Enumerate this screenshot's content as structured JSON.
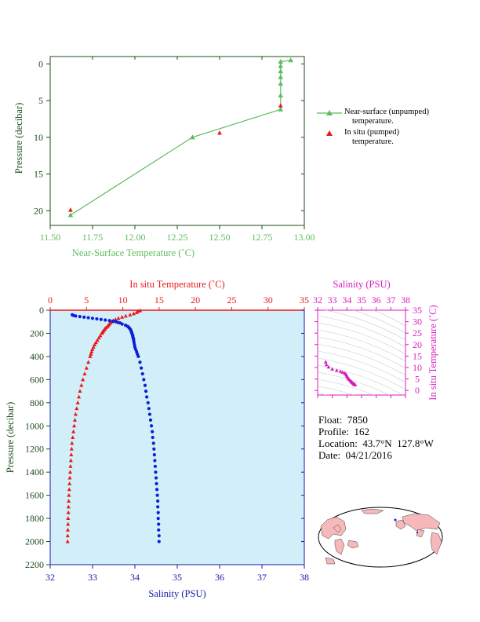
{
  "colors": {
    "green": "#5cbd5c",
    "red": "#e8191b",
    "blue": "#0b1fd6",
    "magenta": "#d81bc0",
    "navy": "#1a1aa8",
    "plot_bg": "#d2eef8",
    "axis_dark": "#1b4d1b"
  },
  "legend": {
    "unpumped_label": "Near-surface (unpumped)",
    "unpumped_sub": "temperature.",
    "pumped_label": "In situ (pumped)",
    "pumped_sub": "temperature."
  },
  "info": {
    "float": "Float:  7850",
    "profile": "Profile:  162",
    "location": "Location:  43.7°N  127.8°W",
    "date": "Date:  04/21/2016"
  },
  "footer_note": "",
  "chart_data": [
    {
      "type": "line",
      "xlabel": "Near-Surface Temperature (˚C)",
      "ylabel": "Pressure (decibar)",
      "xlim": [
        11.5,
        13.0
      ],
      "ylim": [
        22,
        -1
      ],
      "x_ticks": [
        "11.50",
        "11.75",
        "12.00",
        "12.25",
        "12.50",
        "12.75",
        "13.00"
      ],
      "y_ticks": [
        "0",
        "5",
        "10",
        "15",
        "20"
      ],
      "series": [
        {
          "name": "Near-surface (unpumped) temperature.",
          "marker": "triangle",
          "color": "#5cbd5c",
          "points": [
            [
              12.92,
              -0.5
            ],
            [
              12.86,
              -0.3
            ],
            [
              12.86,
              0.3
            ],
            [
              12.86,
              1.0
            ],
            [
              12.86,
              1.8
            ],
            [
              12.86,
              2.7
            ],
            [
              12.86,
              4.3
            ],
            [
              12.86,
              6.2
            ],
            [
              12.34,
              10.0
            ],
            [
              11.62,
              20.6
            ]
          ]
        },
        {
          "name": "In situ (pumped) temperature.",
          "marker": "triangle",
          "color": "#e8191b",
          "points": [
            [
              12.86,
              5.7
            ],
            [
              12.5,
              9.4
            ],
            [
              11.62,
              19.9
            ]
          ]
        }
      ]
    },
    {
      "type": "scatter",
      "title": "In situ Temperature (˚C)",
      "xlabel": "Salinity (PSU)",
      "ylabel": "Pressure (decibar)",
      "top_axis": {
        "range": [
          0,
          35
        ],
        "ticks": [
          "0",
          "5",
          "10",
          "15",
          "20",
          "25",
          "30",
          "35"
        ]
      },
      "bottom_axis": {
        "range": [
          32,
          38
        ],
        "ticks": [
          "32",
          "33",
          "34",
          "35",
          "36",
          "37",
          "38"
        ]
      },
      "ylim": [
        2200,
        0
      ],
      "y_ticks": [
        "0",
        "200",
        "400",
        "600",
        "800",
        "1000",
        "1200",
        "1400",
        "1600",
        "1800",
        "2000",
        "2200"
      ],
      "temperature": {
        "pressure": [
          4,
          10,
          20,
          30,
          40,
          50,
          60,
          70,
          80,
          90,
          100,
          110,
          120,
          130,
          140,
          150,
          160,
          170,
          180,
          190,
          200,
          220,
          240,
          260,
          280,
          300,
          320,
          340,
          360,
          380,
          400,
          450,
          500,
          550,
          600,
          650,
          700,
          750,
          800,
          850,
          900,
          950,
          1000,
          1050,
          1100,
          1150,
          1200,
          1250,
          1300,
          1350,
          1400,
          1450,
          1500,
          1550,
          1600,
          1650,
          1700,
          1750,
          1800,
          1850,
          1900,
          1950,
          2000
        ],
        "values": [
          12.4,
          12.1,
          11.9,
          11.5,
          11.0,
          10.4,
          9.9,
          9.4,
          9.0,
          8.7,
          8.5,
          8.3,
          8.15,
          8.0,
          7.9,
          7.7,
          7.55,
          7.45,
          7.3,
          7.2,
          7.1,
          6.9,
          6.7,
          6.5,
          6.3,
          6.1,
          5.95,
          5.8,
          5.7,
          5.6,
          5.5,
          5.25,
          5.0,
          4.75,
          4.5,
          4.3,
          4.1,
          3.95,
          3.8,
          3.65,
          3.5,
          3.4,
          3.3,
          3.2,
          3.1,
          3.0,
          2.95,
          2.9,
          2.85,
          2.8,
          2.75,
          2.7,
          2.66,
          2.62,
          2.58,
          2.55,
          2.52,
          2.5,
          2.47,
          2.45,
          2.43,
          2.41,
          2.4
        ]
      },
      "salinity": {
        "pressure": [
          40,
          45,
          50,
          55,
          60,
          65,
          70,
          75,
          80,
          85,
          90,
          95,
          100,
          105,
          110,
          120,
          130,
          140,
          150,
          160,
          170,
          180,
          190,
          200,
          210,
          220,
          230,
          240,
          250,
          260,
          280,
          300,
          320,
          340,
          360,
          380,
          400,
          450,
          500,
          550,
          600,
          650,
          700,
          750,
          800,
          850,
          900,
          950,
          1000,
          1050,
          1100,
          1150,
          1200,
          1250,
          1300,
          1350,
          1400,
          1450,
          1500,
          1550,
          1600,
          1650,
          1700,
          1750,
          1800,
          1850,
          1900,
          1950,
          2000
        ],
        "values": [
          32.52,
          32.55,
          32.6,
          32.7,
          32.8,
          32.9,
          33.0,
          33.1,
          33.2,
          33.3,
          33.4,
          33.48,
          33.55,
          33.6,
          33.65,
          33.7,
          33.78,
          33.83,
          33.86,
          33.88,
          33.9,
          33.91,
          33.92,
          33.93,
          33.94,
          33.95,
          33.95,
          33.96,
          33.97,
          33.97,
          33.98,
          33.99,
          34.0,
          34.02,
          34.04,
          34.06,
          34.08,
          34.12,
          34.15,
          34.18,
          34.21,
          34.24,
          34.26,
          34.28,
          34.31,
          34.33,
          34.35,
          34.37,
          34.39,
          34.41,
          34.42,
          34.44,
          34.45,
          34.46,
          34.47,
          34.48,
          34.49,
          34.5,
          34.51,
          34.52,
          34.53,
          34.54,
          34.54,
          34.55,
          34.55,
          34.56,
          34.56,
          34.57,
          34.57
        ]
      }
    },
    {
      "type": "scatter",
      "title": "Salinity (PSU)",
      "ylabel": "In situ Temperature (˚C)",
      "xlim": [
        32,
        38
      ],
      "ylim": [
        -2,
        35
      ],
      "x_ticks": [
        "32",
        "33",
        "34",
        "35",
        "36",
        "37",
        "38"
      ],
      "y_ticks": [
        "0",
        "5",
        "10",
        "15",
        "20",
        "25",
        "30",
        "35"
      ],
      "points": [
        [
          32.55,
          12.4
        ],
        [
          32.6,
          11.2
        ],
        [
          32.75,
          10.2
        ],
        [
          33.0,
          9.3
        ],
        [
          33.3,
          8.7
        ],
        [
          33.55,
          8.3
        ],
        [
          33.7,
          7.9
        ],
        [
          33.85,
          7.5
        ],
        [
          33.93,
          7.1
        ],
        [
          33.97,
          6.7
        ],
        [
          34.0,
          6.2
        ],
        [
          34.05,
          5.7
        ],
        [
          34.1,
          5.2
        ],
        [
          34.15,
          4.8
        ],
        [
          34.22,
          4.3
        ],
        [
          34.28,
          3.9
        ],
        [
          34.33,
          3.6
        ],
        [
          34.38,
          3.3
        ],
        [
          34.43,
          3.0
        ],
        [
          34.47,
          2.8
        ],
        [
          34.51,
          2.65
        ],
        [
          34.54,
          2.52
        ],
        [
          34.57,
          2.4
        ]
      ]
    }
  ]
}
